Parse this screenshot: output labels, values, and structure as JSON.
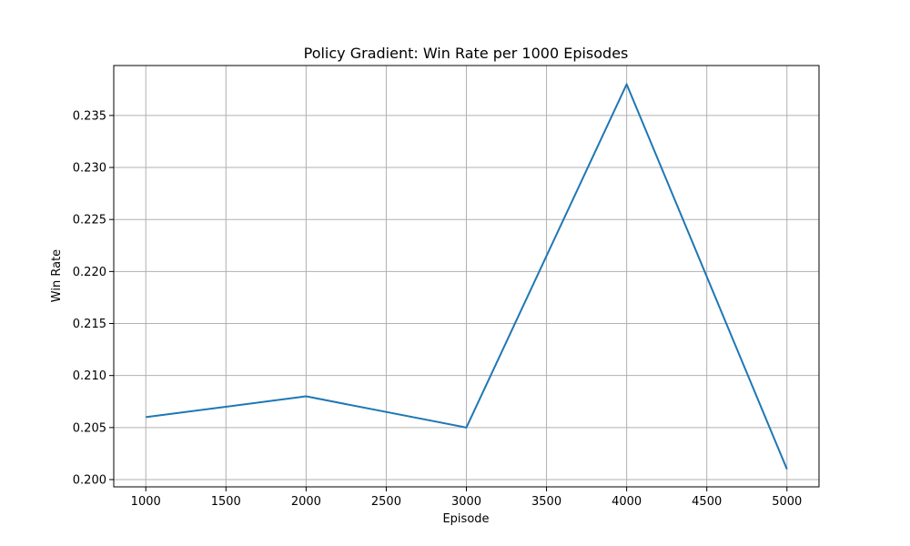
{
  "chart_data": {
    "type": "line",
    "title": "Policy Gradient: Win Rate per 1000 Episodes",
    "xlabel": "Episode",
    "ylabel": "Win Rate",
    "x": [
      1000,
      2000,
      3000,
      4000,
      5000
    ],
    "series": [
      {
        "values": [
          0.206,
          0.208,
          0.205,
          0.238,
          0.201
        ],
        "color": "#1f77b4"
      }
    ],
    "xlim": [
      800,
      5200
    ],
    "ylim": [
      0.1993,
      0.2398
    ],
    "xticks": [
      1000,
      1500,
      2000,
      2500,
      3000,
      3500,
      4000,
      4500,
      5000
    ],
    "yticks": [
      0.2,
      0.205,
      0.21,
      0.215,
      0.22,
      0.225,
      0.23,
      0.235
    ],
    "ytick_labels": [
      "0.200",
      "0.205",
      "0.210",
      "0.215",
      "0.220",
      "0.225",
      "0.230",
      "0.235"
    ],
    "grid": true,
    "legend": "none"
  }
}
